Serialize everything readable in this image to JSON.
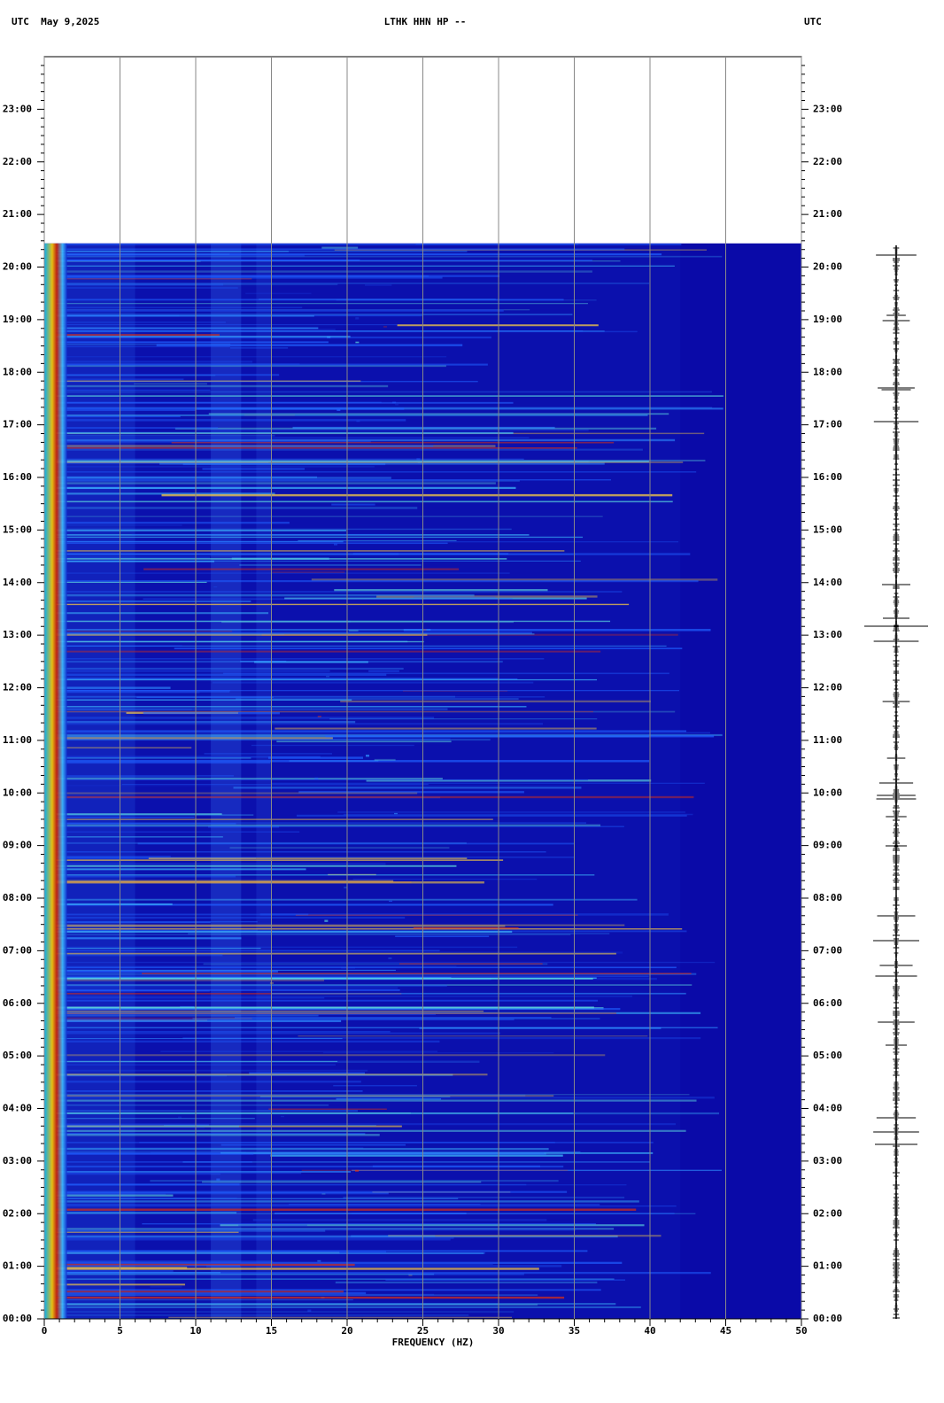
{
  "chart_data": {
    "type": "spectrogram",
    "header_left": "UTC  May 9,2025",
    "title": "LTHK HHN HP --",
    "header_right": "UTC",
    "x_label": "FREQUENCY (HZ)",
    "xlim": [
      0,
      50
    ],
    "xticks": [
      0,
      5,
      10,
      15,
      20,
      25,
      30,
      35,
      40,
      45,
      50
    ],
    "ylim": [
      0,
      24
    ],
    "yticks": [
      {
        "value": 0,
        "label": "00:00"
      },
      {
        "value": 1,
        "label": "01:00"
      },
      {
        "value": 2,
        "label": "02:00"
      },
      {
        "value": 3,
        "label": "03:00"
      },
      {
        "value": 4,
        "label": "04:00"
      },
      {
        "value": 5,
        "label": "05:00"
      },
      {
        "value": 6,
        "label": "06:00"
      },
      {
        "value": 7,
        "label": "07:00"
      },
      {
        "value": 8,
        "label": "08:00"
      },
      {
        "value": 9,
        "label": "09:00"
      },
      {
        "value": 10,
        "label": "10:00"
      },
      {
        "value": 11,
        "label": "11:00"
      },
      {
        "value": 12,
        "label": "12:00"
      },
      {
        "value": 13,
        "label": "13:00"
      },
      {
        "value": 14,
        "label": "14:00"
      },
      {
        "value": 15,
        "label": "15:00"
      },
      {
        "value": 16,
        "label": "16:00"
      },
      {
        "value": 17,
        "label": "17:00"
      },
      {
        "value": 18,
        "label": "18:00"
      },
      {
        "value": 19,
        "label": "19:00"
      },
      {
        "value": 20,
        "label": "20:00"
      },
      {
        "value": 21,
        "label": "21:00"
      },
      {
        "value": 22,
        "label": "22:00"
      },
      {
        "value": 23,
        "label": "23:00"
      }
    ],
    "data_end": 20.45,
    "background_color": "#0a0aa8",
    "grid": true
  }
}
